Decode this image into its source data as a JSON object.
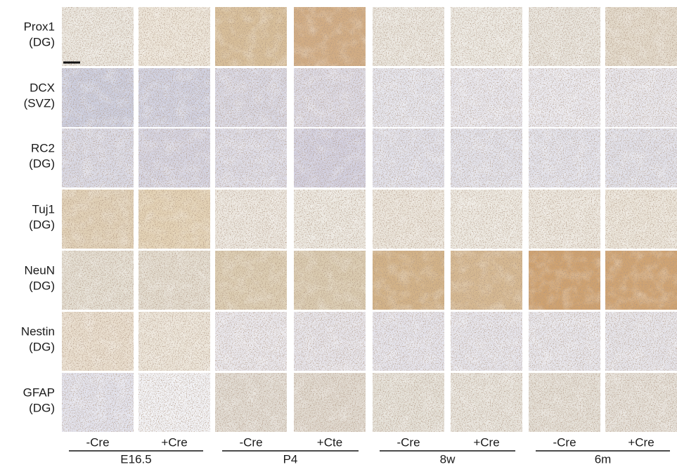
{
  "rows": [
    {
      "marker": "Prox1",
      "region": "(DG)"
    },
    {
      "marker": "DCX",
      "region": "(SVZ)"
    },
    {
      "marker": "RC2",
      "region": "(DG)"
    },
    {
      "marker": "Tuj1",
      "region": "(DG)"
    },
    {
      "marker": "NeuN",
      "region": "(DG)"
    },
    {
      "marker": "Nestin",
      "region": "(DG)"
    },
    {
      "marker": "GFAP",
      "region": "(DG)"
    }
  ],
  "columns": [
    "-Cre",
    "+Cre",
    "-Cre",
    "+Cte",
    "-Cre",
    "+Cre",
    "-Cre",
    "+Cre"
  ],
  "groups": [
    "E16.5",
    "P4",
    "8w",
    "6m"
  ]
}
